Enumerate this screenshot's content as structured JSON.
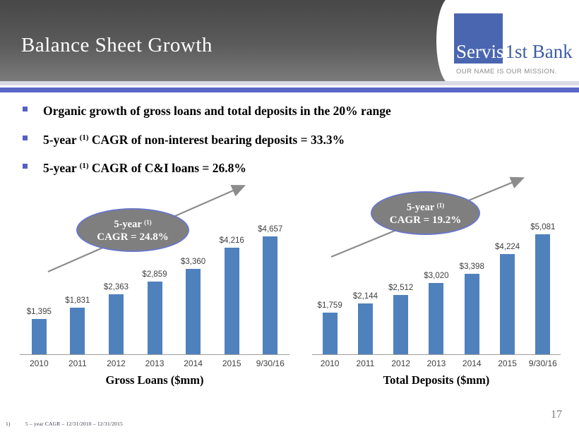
{
  "slide": {
    "title": "Balance Sheet Growth",
    "page_number": "17",
    "footnote_marker": "1)",
    "footnote_text": "5 – year CAGR – 12/31/2010 – 12/31/2015"
  },
  "logo": {
    "name_part1": "Servis",
    "name_part2": "1st Bank",
    "tagline": "OUR NAME IS OUR MISSION."
  },
  "bullets": [
    {
      "pre": "Organic growth of gross loans and total deposits in the 20% range",
      "sup": "",
      "post": ""
    },
    {
      "pre": "5-year ",
      "sup": "(1)",
      "post": " CAGR of non-interest bearing deposits = 33.3%"
    },
    {
      "pre": "5-year ",
      "sup": "(1)",
      "post": " CAGR of C&I loans = 26.8%"
    }
  ],
  "colors": {
    "header_gradient_top": "#474747",
    "header_gradient_bottom": "#7b7b7b",
    "accent_strip_gray": "#d9dae3",
    "accent_strip_blue": "#5a67c7",
    "bullet_marker_blue": "#5560c4",
    "bar_blue": "#4f81bd",
    "oval_fill_gray": "#7f7f7f",
    "oval_border_blue": "#6a77c9",
    "arrow_gray": "#8c8c8c",
    "logo_square_blue": "#4a66b0",
    "logo_text_blue": "#3e5ca6"
  },
  "chart_data": [
    {
      "type": "bar",
      "title": "Gross Loans ($mm)",
      "categories": [
        "2010",
        "2011",
        "2012",
        "2013",
        "2014",
        "2015",
        "9/30/16"
      ],
      "values": [
        1395,
        1831,
        2363,
        2859,
        3360,
        4216,
        4657
      ],
      "labels": [
        "$1,395",
        "$1,831",
        "$2,363",
        "$2,859",
        "$3,360",
        "$4,216",
        "$4,657"
      ],
      "bar_color": "#4f81bd",
      "ylim": [
        0,
        5000
      ],
      "grid": false,
      "annotation": {
        "line1": "5-year ",
        "line1_sup": "(1)",
        "line2": "CAGR = 24.8%"
      }
    },
    {
      "type": "bar",
      "title": "Total Deposits ($mm)",
      "categories": [
        "2010",
        "2011",
        "2012",
        "2013",
        "2014",
        "2015",
        "9/30/16"
      ],
      "values": [
        1759,
        2144,
        2512,
        3020,
        3398,
        4224,
        5081
      ],
      "labels": [
        "$1,759",
        "$2,144",
        "$2,512",
        "$3,020",
        "$3,398",
        "$4,224",
        "$5,081"
      ],
      "bar_color": "#4f81bd",
      "ylim": [
        0,
        5500
      ],
      "grid": false,
      "annotation": {
        "line1": "5-year ",
        "line1_sup": "(1)",
        "line2": "CAGR = 19.2%"
      }
    }
  ]
}
